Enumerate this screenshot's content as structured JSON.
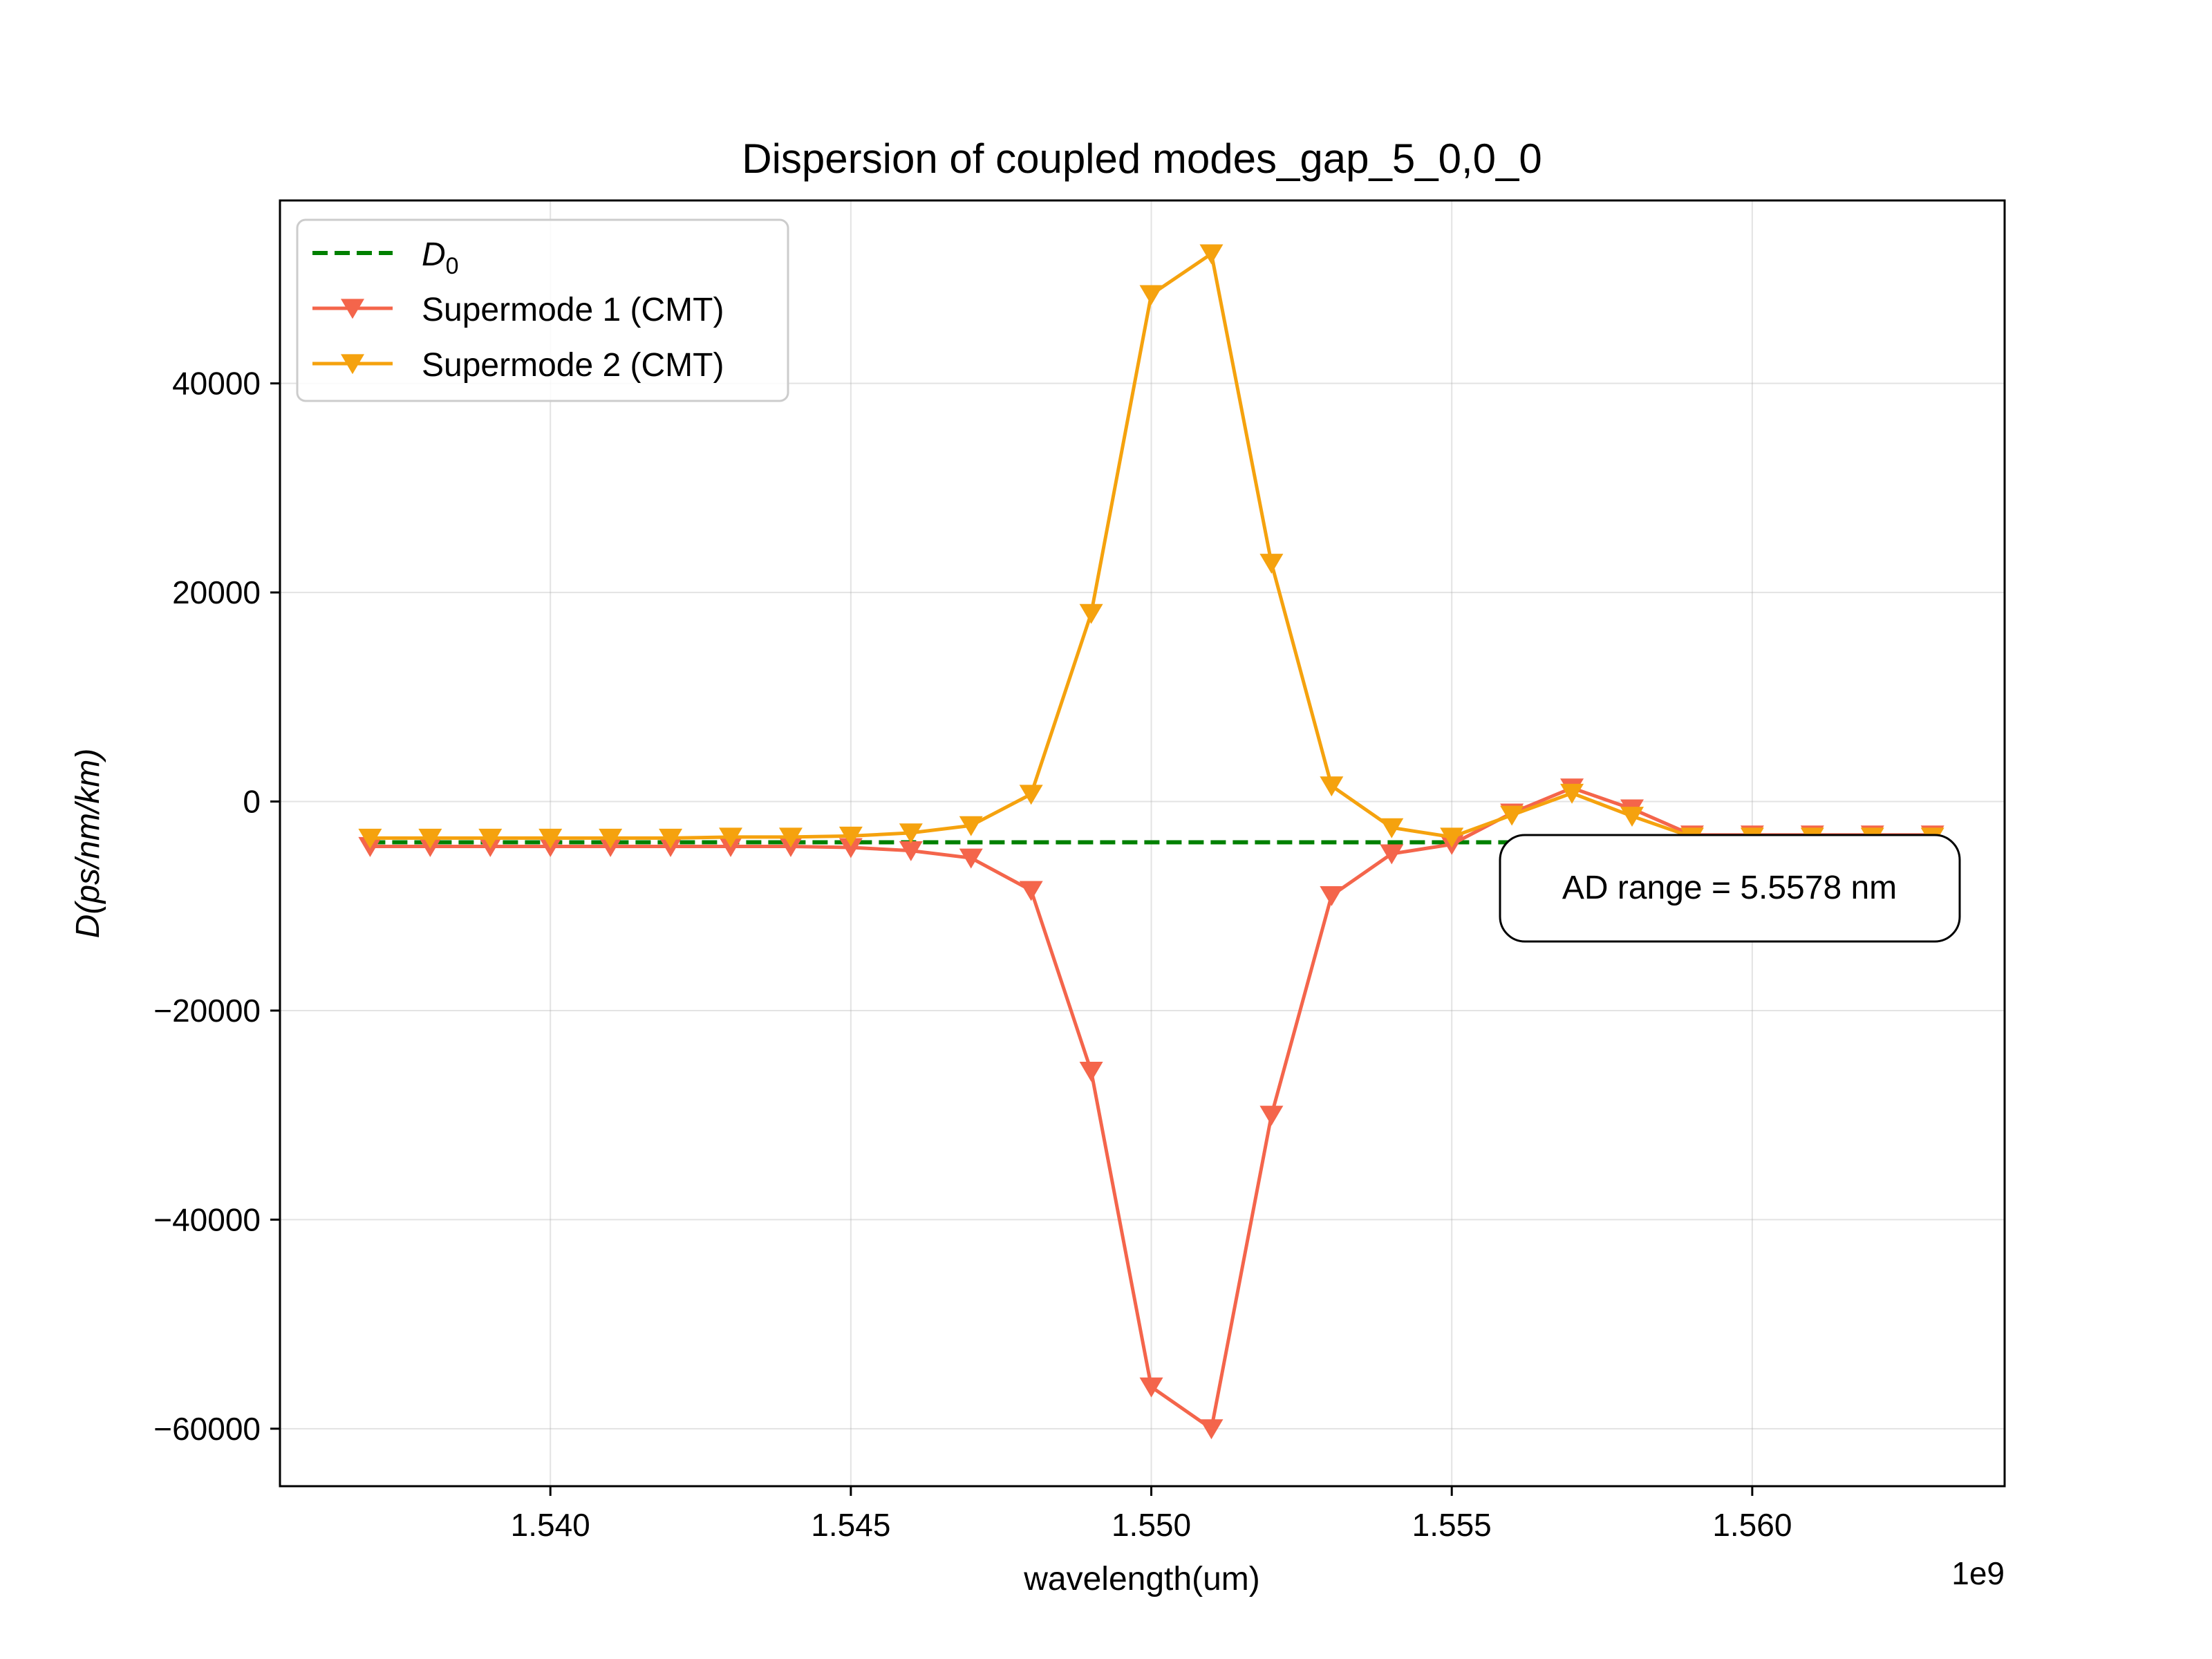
{
  "chart_data": {
    "type": "line",
    "title": "Dispersion of coupled modes_gap_5_0,0_0",
    "xlabel": "wavelength(um)",
    "ylabel": "D(ps/nm/km)",
    "x_offset_label": "1e9",
    "xlim": [
      1.5355,
      1.5642
    ],
    "ylim": [
      -65500,
      57500
    ],
    "x_ticks": [
      1.54,
      1.545,
      1.55,
      1.555,
      1.56
    ],
    "x_tick_labels": [
      "1.540",
      "1.545",
      "1.550",
      "1.555",
      "1.560"
    ],
    "y_ticks": [
      -60000,
      -40000,
      -20000,
      0,
      20000,
      40000
    ],
    "y_tick_labels": [
      "−60000",
      "−40000",
      "−20000",
      "0",
      "20000",
      "40000"
    ],
    "grid": true,
    "legend_position": "upper-left",
    "x": [
      1.537,
      1.538,
      1.539,
      1.54,
      1.541,
      1.542,
      1.543,
      1.544,
      1.545,
      1.546,
      1.547,
      1.548,
      1.549,
      1.55,
      1.551,
      1.552,
      1.553,
      1.554,
      1.555,
      1.556,
      1.557,
      1.558,
      1.559,
      1.56,
      1.561,
      1.562,
      1.563
    ],
    "series": [
      {
        "name": "D₀",
        "legend_main": "D",
        "legend_sub": "0",
        "style": "dashed",
        "marker": "none",
        "color": "#008000",
        "x": [
          1.537,
          1.563
        ],
        "values": [
          -3900,
          -3900
        ]
      },
      {
        "name": "Supermode 1 (CMT)",
        "style": "solid",
        "marker": "triangle-down",
        "color": "#F4654B",
        "values": [
          -4300,
          -4300,
          -4300,
          -4300,
          -4300,
          -4300,
          -4300,
          -4300,
          -4400,
          -4700,
          -5400,
          -8500,
          -25800,
          -56000,
          -60000,
          -30000,
          -9000,
          -5000,
          -4100,
          -1100,
          1300,
          -700,
          -3200,
          -3200,
          -3200,
          -3200,
          -3200
        ]
      },
      {
        "name": "Supermode 2 (CMT)",
        "style": "solid",
        "marker": "triangle-down",
        "color": "#F5A20E",
        "values": [
          -3500,
          -3500,
          -3500,
          -3500,
          -3500,
          -3500,
          -3400,
          -3400,
          -3300,
          -3000,
          -2300,
          700,
          18000,
          48500,
          52400,
          22800,
          1500,
          -2500,
          -3400,
          -1300,
          800,
          -1400,
          -3400,
          -3400,
          -3400,
          -3400,
          -3400
        ]
      }
    ],
    "annotation": "AD range = 5.5578 nm"
  }
}
